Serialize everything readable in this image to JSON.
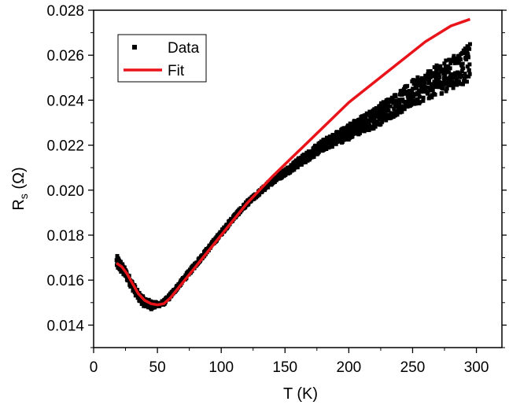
{
  "chart_data": {
    "type": "scatter",
    "title": "",
    "xlabel": "T (K)",
    "ylabel_main": "R",
    "ylabel_sub": "s",
    "ylabel_unit": " (Ω)",
    "xlim": [
      0,
      320
    ],
    "ylim": [
      0.013,
      0.028
    ],
    "x_ticks": [
      0,
      50,
      100,
      150,
      200,
      250,
      300
    ],
    "x_tick_labels": [
      "0",
      "50",
      "100",
      "150",
      "200",
      "250",
      "300"
    ],
    "y_ticks": [
      0.014,
      0.016,
      0.018,
      0.02,
      0.022,
      0.024,
      0.026,
      0.028
    ],
    "y_tick_labels": [
      "0.014",
      "0.016",
      "0.018",
      "0.020",
      "0.022",
      "0.024",
      "0.026",
      "0.028"
    ],
    "grid": false,
    "legend_position": "top-left",
    "series": [
      {
        "name": "Data",
        "kind": "scatter",
        "marker": "square",
        "color": "#000000",
        "x": [
          18,
          20,
          25,
          30,
          35,
          40,
          45,
          50,
          55,
          60,
          70,
          80,
          90,
          100,
          110,
          120,
          130,
          140,
          150,
          160,
          170,
          180,
          190,
          200,
          210,
          220,
          230,
          240,
          250,
          260,
          270,
          280,
          290,
          295
        ],
        "y": [
          0.0168,
          0.0167,
          0.0163,
          0.0158,
          0.0153,
          0.015,
          0.0149,
          0.0149,
          0.015,
          0.0153,
          0.016,
          0.0167,
          0.0174,
          0.0181,
          0.0188,
          0.0194,
          0.0199,
          0.0204,
          0.0208,
          0.0212,
          0.0216,
          0.022,
          0.0223,
          0.0226,
          0.0229,
          0.0232,
          0.0236,
          0.0239,
          0.0243,
          0.0246,
          0.0249,
          0.0252,
          0.0255,
          0.0257
        ],
        "y_spread": [
          0.0003,
          0.0003,
          0.0002,
          0.0002,
          0.0002,
          0.0002,
          0.0002,
          0.0001,
          0.0001,
          0.0001,
          0.0001,
          0.0001,
          0.0001,
          0.0001,
          0.0001,
          0.0001,
          0.0001,
          0.00012,
          0.00015,
          0.0002,
          0.00022,
          0.00025,
          0.0003,
          0.00035,
          0.0004,
          0.00045,
          0.0005,
          0.0005,
          0.0006,
          0.0006,
          0.0007,
          0.0007,
          0.0008,
          0.0008
        ]
      },
      {
        "name": "Fit",
        "kind": "line",
        "color": "#e8141a",
        "x": [
          18,
          22,
          26,
          30,
          35,
          40,
          45,
          50,
          55,
          60,
          70,
          80,
          90,
          100,
          120,
          140,
          160,
          180,
          200,
          220,
          240,
          260,
          280,
          295
        ],
        "y": [
          0.01675,
          0.0166,
          0.0163,
          0.0159,
          0.0154,
          0.0151,
          0.01495,
          0.0149,
          0.01495,
          0.0152,
          0.0159,
          0.0166,
          0.0173,
          0.018,
          0.0194,
          0.0206,
          0.0217,
          0.0228,
          0.0239,
          0.0248,
          0.0257,
          0.0266,
          0.0273,
          0.0276
        ]
      }
    ]
  }
}
